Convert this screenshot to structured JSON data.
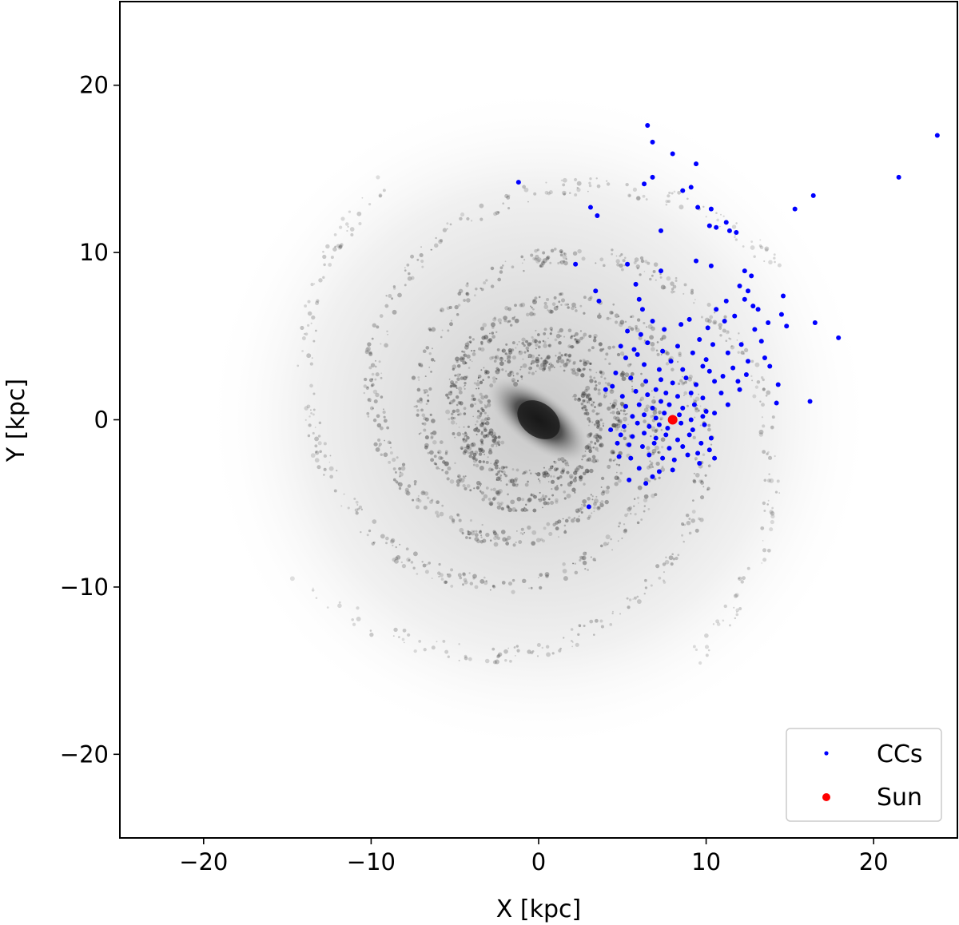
{
  "chart_data": {
    "type": "scatter",
    "title": "",
    "xlabel": "X [kpc]",
    "ylabel": "Y [kpc]",
    "xlim": [
      -25,
      25
    ],
    "ylim": [
      -25,
      25
    ],
    "xticks": [
      -20,
      -10,
      0,
      10,
      20
    ],
    "yticks": [
      -20,
      -10,
      0,
      10,
      20
    ],
    "xtick_labels": [
      "−20",
      "−10",
      "0",
      "10",
      "20"
    ],
    "ytick_labels": [
      "−20",
      "−10",
      "0",
      "10",
      "20"
    ],
    "background": "grayscale spiral galaxy density map (Milky Way model)",
    "grid": false,
    "legend_position": "lower-right",
    "series": [
      {
        "name": "CCs",
        "color": "#0000ff",
        "marker": "small-dot",
        "points": [
          [
            23.8,
            17.0
          ],
          [
            21.5,
            14.5
          ],
          [
            6.5,
            17.6
          ],
          [
            6.8,
            16.6
          ],
          [
            8.0,
            15.9
          ],
          [
            9.4,
            15.3
          ],
          [
            6.8,
            14.5
          ],
          [
            6.3,
            14.1
          ],
          [
            -1.2,
            14.2
          ],
          [
            8.6,
            13.7
          ],
          [
            9.1,
            13.9
          ],
          [
            3.1,
            12.7
          ],
          [
            3.5,
            12.2
          ],
          [
            16.4,
            13.4
          ],
          [
            15.3,
            12.6
          ],
          [
            9.5,
            12.7
          ],
          [
            10.3,
            12.6
          ],
          [
            10.2,
            11.6
          ],
          [
            10.6,
            11.5
          ],
          [
            11.2,
            11.8
          ],
          [
            11.4,
            11.3
          ],
          [
            11.8,
            11.2
          ],
          [
            7.3,
            11.3
          ],
          [
            9.4,
            9.5
          ],
          [
            10.3,
            9.2
          ],
          [
            12.3,
            8.9
          ],
          [
            12.7,
            8.6
          ],
          [
            2.2,
            9.3
          ],
          [
            3.4,
            7.7
          ],
          [
            5.3,
            9.3
          ],
          [
            7.3,
            8.9
          ],
          [
            5.8,
            8.1
          ],
          [
            3.6,
            7.1
          ],
          [
            6.0,
            7.2
          ],
          [
            12.0,
            8.0
          ],
          [
            12.5,
            7.7
          ],
          [
            11.2,
            7.1
          ],
          [
            12.8,
            6.8
          ],
          [
            13.1,
            6.6
          ],
          [
            12.3,
            7.2
          ],
          [
            14.6,
            7.4
          ],
          [
            11.7,
            6.2
          ],
          [
            10.6,
            6.6
          ],
          [
            9.0,
            6.0
          ],
          [
            8.5,
            5.7
          ],
          [
            10.1,
            5.5
          ],
          [
            11.1,
            5.9
          ],
          [
            14.5,
            6.3
          ],
          [
            14.8,
            5.6
          ],
          [
            13.7,
            5.8
          ],
          [
            16.5,
            5.8
          ],
          [
            17.9,
            4.9
          ],
          [
            13.3,
            4.7
          ],
          [
            12.1,
            4.5
          ],
          [
            12.9,
            5.4
          ],
          [
            6.2,
            6.6
          ],
          [
            6.8,
            5.9
          ],
          [
            7.5,
            5.4
          ],
          [
            6.1,
            5.1
          ],
          [
            5.3,
            5.3
          ],
          [
            4.9,
            4.4
          ],
          [
            5.7,
            4.2
          ],
          [
            6.5,
            4.6
          ],
          [
            7.4,
            4.1
          ],
          [
            8.3,
            4.4
          ],
          [
            9.6,
            4.8
          ],
          [
            10.4,
            4.5
          ],
          [
            9.2,
            4.0
          ],
          [
            11.3,
            4.0
          ],
          [
            10.0,
            3.6
          ],
          [
            12.5,
            3.5
          ],
          [
            13.5,
            3.7
          ],
          [
            11.6,
            3.1
          ],
          [
            10.2,
            2.9
          ],
          [
            9.8,
            3.2
          ],
          [
            8.6,
            3.0
          ],
          [
            7.9,
            3.5
          ],
          [
            7.2,
            3.0
          ],
          [
            6.3,
            3.3
          ],
          [
            5.9,
            3.9
          ],
          [
            5.2,
            3.7
          ],
          [
            4.6,
            2.8
          ],
          [
            5.5,
            2.5
          ],
          [
            6.4,
            2.3
          ],
          [
            7.3,
            2.4
          ],
          [
            8.0,
            2.2
          ],
          [
            8.8,
            2.5
          ],
          [
            9.4,
            2.1
          ],
          [
            10.5,
            2.3
          ],
          [
            11.0,
            2.6
          ],
          [
            11.9,
            2.3
          ],
          [
            12.4,
            2.7
          ],
          [
            13.8,
            3.2
          ],
          [
            4.4,
            2.0
          ],
          [
            4.0,
            1.8
          ],
          [
            5.0,
            1.4
          ],
          [
            5.8,
            1.7
          ],
          [
            6.5,
            1.5
          ],
          [
            7.0,
            1.8
          ],
          [
            7.6,
            1.6
          ],
          [
            8.3,
            1.4
          ],
          [
            9.1,
            1.6
          ],
          [
            9.8,
            1.3
          ],
          [
            10.9,
            1.6
          ],
          [
            12.0,
            1.8
          ],
          [
            14.3,
            2.1
          ],
          [
            5.2,
            0.8
          ],
          [
            6.0,
            0.9
          ],
          [
            6.8,
            0.7
          ],
          [
            7.3,
            1.1
          ],
          [
            7.8,
            0.9
          ],
          [
            8.6,
            0.7
          ],
          [
            9.3,
            0.9
          ],
          [
            10.0,
            0.5
          ],
          [
            11.3,
            0.9
          ],
          [
            14.2,
            1.0
          ],
          [
            16.2,
            1.1
          ],
          [
            5.6,
            0.2
          ],
          [
            6.3,
            0.3
          ],
          [
            7.0,
            0.1
          ],
          [
            7.5,
            0.4
          ],
          [
            8.4,
            0.3
          ],
          [
            9.1,
            0.0
          ],
          [
            9.8,
            0.2
          ],
          [
            10.5,
            0.4
          ],
          [
            5.1,
            -0.4
          ],
          [
            5.9,
            -0.2
          ],
          [
            6.6,
            -0.4
          ],
          [
            7.2,
            -0.3
          ],
          [
            7.7,
            -0.5
          ],
          [
            8.5,
            -0.2
          ],
          [
            9.2,
            -0.6
          ],
          [
            9.9,
            -0.3
          ],
          [
            4.3,
            -0.6
          ],
          [
            4.9,
            -0.9
          ],
          [
            5.6,
            -1.0
          ],
          [
            6.3,
            -0.8
          ],
          [
            7.0,
            -1.1
          ],
          [
            7.6,
            -0.9
          ],
          [
            8.3,
            -1.2
          ],
          [
            9.0,
            -0.9
          ],
          [
            9.7,
            -1.4
          ],
          [
            10.3,
            -1.1
          ],
          [
            4.7,
            -1.4
          ],
          [
            5.4,
            -1.5
          ],
          [
            6.2,
            -1.6
          ],
          [
            6.9,
            -1.4
          ],
          [
            7.8,
            -1.7
          ],
          [
            8.6,
            -1.6
          ],
          [
            9.5,
            -2.0
          ],
          [
            10.2,
            -1.8
          ],
          [
            5.5,
            -2.3
          ],
          [
            6.6,
            -2.1
          ],
          [
            7.4,
            -2.3
          ],
          [
            8.1,
            -2.4
          ],
          [
            8.9,
            -2.1
          ],
          [
            9.6,
            -2.6
          ],
          [
            10.5,
            -2.3
          ],
          [
            4.8,
            -2.2
          ],
          [
            6.0,
            -2.9
          ],
          [
            7.2,
            -3.1
          ],
          [
            8.0,
            -3.0
          ],
          [
            6.8,
            -3.4
          ],
          [
            5.4,
            -3.6
          ],
          [
            6.4,
            -3.8
          ],
          [
            3.0,
            -5.2
          ]
        ]
      },
      {
        "name": "Sun",
        "color": "#ff0000",
        "marker": "dot",
        "points": [
          [
            8.0,
            0.0
          ]
        ]
      }
    ]
  }
}
